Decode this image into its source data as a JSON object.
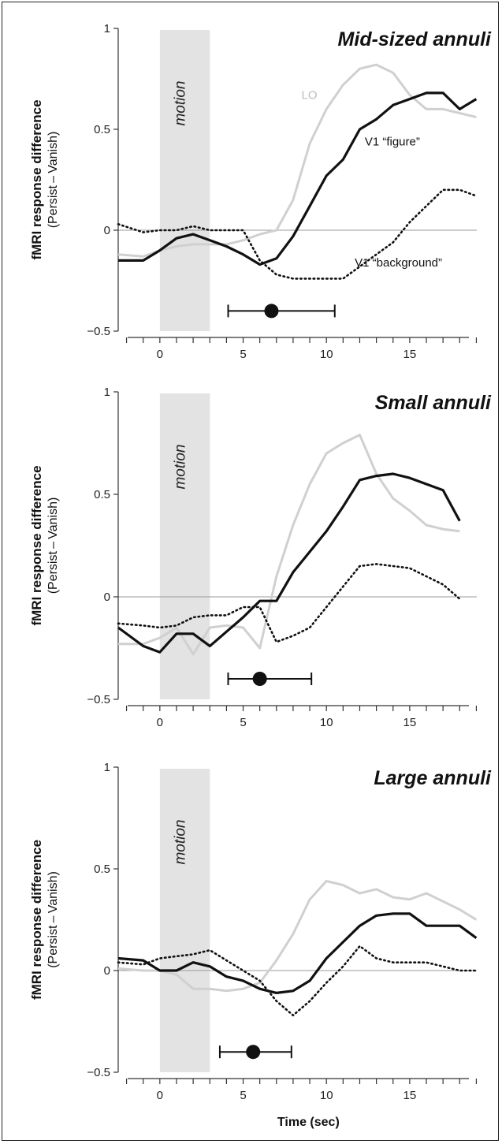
{
  "colors": {
    "lo": "#d0d0d0",
    "figure": "#111111",
    "background": "#111111",
    "motion_band": "#e3e3e3",
    "axis": "#333333",
    "zero_line": "#999999"
  },
  "chart_data": [
    {
      "type": "line",
      "title": "Mid-sized annuli",
      "ylabel": "fMRI response difference",
      "ylabel_sub": "(Persist – Vanish)",
      "xlim": [
        -2.5,
        19.5
      ],
      "ylim": [
        -0.5,
        1
      ],
      "yticks": [
        1,
        0.5,
        0,
        -0.5
      ],
      "ytick_labels": [
        "1",
        "0.5",
        "0",
        "−0.5"
      ],
      "xticks": [
        0,
        5,
        10,
        15
      ],
      "xtick_labels": [
        "0",
        "5",
        "10",
        "15"
      ],
      "shaded_region": {
        "x": [
          0,
          3
        ],
        "label": "motion"
      },
      "series": [
        {
          "name": "LO",
          "style": "gray",
          "x": [
            -2.5,
            -1,
            0,
            1,
            2,
            3,
            4,
            5,
            6,
            7,
            8,
            9,
            10,
            11,
            12,
            13,
            14,
            15,
            16,
            17,
            18,
            19
          ],
          "y": [
            -0.12,
            -0.13,
            -0.1,
            -0.08,
            -0.07,
            -0.07,
            -0.07,
            -0.05,
            -0.02,
            0.0,
            0.15,
            0.43,
            0.6,
            0.72,
            0.8,
            0.82,
            0.78,
            0.67,
            0.6,
            0.6,
            0.58,
            0.56
          ]
        },
        {
          "name": "V1 “figure”",
          "style": "solid",
          "x": [
            -2.5,
            -1,
            0,
            1,
            2,
            3,
            4,
            5,
            6,
            7,
            8,
            9,
            10,
            11,
            12,
            13,
            14,
            15,
            16,
            17,
            18,
            19
          ],
          "y": [
            -0.15,
            -0.15,
            -0.1,
            -0.04,
            -0.02,
            -0.05,
            -0.08,
            -0.12,
            -0.17,
            -0.14,
            -0.03,
            0.12,
            0.27,
            0.35,
            0.5,
            0.55,
            0.62,
            0.65,
            0.68,
            0.68,
            0.6,
            0.65
          ]
        },
        {
          "name": "V1 “background”",
          "style": "dotted",
          "x": [
            -2.5,
            -1,
            0,
            1,
            2,
            3,
            4,
            5,
            6,
            7,
            8,
            9,
            10,
            11,
            12,
            13,
            14,
            15,
            16,
            17,
            18,
            19
          ],
          "y": [
            0.03,
            -0.01,
            0.0,
            0.0,
            0.02,
            0.0,
            0.0,
            0.0,
            -0.15,
            -0.22,
            -0.24,
            -0.24,
            -0.24,
            -0.24,
            -0.18,
            -0.12,
            -0.06,
            0.04,
            0.12,
            0.2,
            0.2,
            0.17
          ]
        }
      ],
      "annotations": [
        {
          "text": "LO",
          "x": 8.5,
          "y": 0.65,
          "gray": true
        },
        {
          "text": "V1 “figure”",
          "x": 12.3,
          "y": 0.42
        },
        {
          "text": "V1 “background”",
          "x": 11.7,
          "y": -0.18
        }
      ],
      "errorbar": {
        "x": 6.7,
        "xmin": 4.1,
        "xmax": 10.5,
        "y": -0.4
      }
    },
    {
      "type": "line",
      "title": "Small annuli",
      "ylabel": "fMRI response difference",
      "ylabel_sub": "(Persist – Vanish)",
      "xlim": [
        -2.5,
        19.5
      ],
      "ylim": [
        -0.5,
        1
      ],
      "yticks": [
        1,
        0.5,
        0,
        -0.5
      ],
      "ytick_labels": [
        "1",
        "0.5",
        "0",
        "−0.5"
      ],
      "xticks": [
        0,
        5,
        10,
        15
      ],
      "xtick_labels": [
        "0",
        "5",
        "10",
        "15"
      ],
      "shaded_region": {
        "x": [
          0,
          3
        ],
        "label": "motion"
      },
      "series": [
        {
          "name": "LO",
          "style": "gray",
          "x": [
            -2.5,
            -1,
            0,
            1,
            2,
            3,
            4,
            5,
            6,
            7,
            8,
            9,
            10,
            11,
            12,
            13,
            14,
            15,
            16,
            17,
            18
          ],
          "y": [
            -0.23,
            -0.23,
            -0.2,
            -0.15,
            -0.28,
            -0.15,
            -0.14,
            -0.15,
            -0.25,
            0.1,
            0.35,
            0.55,
            0.7,
            0.75,
            0.79,
            0.6,
            0.48,
            0.42,
            0.35,
            0.33,
            0.32
          ]
        },
        {
          "name": "V1 “figure”",
          "style": "solid",
          "x": [
            -2.5,
            -1,
            0,
            1,
            2,
            3,
            4,
            5,
            6,
            7,
            8,
            9,
            10,
            11,
            12,
            13,
            14,
            15,
            16,
            17,
            18
          ],
          "y": [
            -0.15,
            -0.24,
            -0.27,
            -0.18,
            -0.18,
            -0.24,
            -0.17,
            -0.1,
            -0.02,
            -0.02,
            0.12,
            0.22,
            0.32,
            0.44,
            0.57,
            0.59,
            0.6,
            0.58,
            0.55,
            0.52,
            0.37
          ]
        },
        {
          "name": "V1 “background”",
          "style": "dotted",
          "x": [
            -2.5,
            -1,
            0,
            1,
            2,
            3,
            4,
            5,
            6,
            7,
            8,
            9,
            10,
            11,
            12,
            13,
            14,
            15,
            16,
            17,
            18
          ],
          "y": [
            -0.13,
            -0.14,
            -0.15,
            -0.14,
            -0.1,
            -0.09,
            -0.09,
            -0.05,
            -0.05,
            -0.22,
            -0.19,
            -0.15,
            -0.05,
            0.05,
            0.15,
            0.16,
            0.15,
            0.14,
            0.1,
            0.06,
            -0.01
          ]
        }
      ],
      "annotations": [],
      "errorbar": {
        "x": 6.0,
        "xmin": 4.1,
        "xmax": 9.1,
        "y": -0.4
      }
    },
    {
      "type": "line",
      "title": "Large annuli",
      "ylabel": "fMRI response difference",
      "ylabel_sub": "(Persist – Vanish)",
      "xlabel": "Time (sec)",
      "xlim": [
        -2.5,
        19.5
      ],
      "ylim": [
        -0.5,
        1
      ],
      "yticks": [
        1,
        0.5,
        0,
        -0.5
      ],
      "ytick_labels": [
        "1",
        "0.5",
        "0",
        "−0.5"
      ],
      "xticks": [
        0,
        5,
        10,
        15
      ],
      "xtick_labels": [
        "0",
        "5",
        "10",
        "15"
      ],
      "shaded_region": {
        "x": [
          0,
          3
        ],
        "label": "motion"
      },
      "series": [
        {
          "name": "LO",
          "style": "gray",
          "x": [
            -2.5,
            -1,
            0,
            1,
            2,
            3,
            4,
            5,
            6,
            7,
            8,
            9,
            10,
            11,
            12,
            13,
            14,
            15,
            16,
            17,
            18,
            19
          ],
          "y": [
            0.01,
            0.0,
            0.0,
            -0.02,
            -0.09,
            -0.09,
            -0.1,
            -0.09,
            -0.06,
            0.05,
            0.18,
            0.35,
            0.44,
            0.42,
            0.38,
            0.4,
            0.36,
            0.35,
            0.38,
            0.34,
            0.3,
            0.25
          ]
        },
        {
          "name": "V1 “figure”",
          "style": "solid",
          "x": [
            -2.5,
            -1,
            0,
            1,
            2,
            3,
            4,
            5,
            6,
            7,
            8,
            9,
            10,
            11,
            12,
            13,
            14,
            15,
            16,
            17,
            18,
            19
          ],
          "y": [
            0.06,
            0.05,
            0.0,
            0.0,
            0.04,
            0.02,
            -0.03,
            -0.05,
            -0.09,
            -0.11,
            -0.1,
            -0.05,
            0.06,
            0.14,
            0.22,
            0.27,
            0.28,
            0.28,
            0.22,
            0.22,
            0.22,
            0.16
          ]
        },
        {
          "name": "V1 “background”",
          "style": "dotted",
          "x": [
            -2.5,
            -1,
            0,
            1,
            2,
            3,
            4,
            5,
            6,
            7,
            8,
            9,
            10,
            11,
            12,
            13,
            14,
            15,
            16,
            17,
            18,
            19
          ],
          "y": [
            0.04,
            0.03,
            0.06,
            0.07,
            0.08,
            0.1,
            0.05,
            0.0,
            -0.05,
            -0.15,
            -0.22,
            -0.15,
            -0.06,
            0.02,
            0.12,
            0.06,
            0.04,
            0.04,
            0.04,
            0.02,
            0.0,
            0.0
          ]
        }
      ],
      "annotations": [],
      "errorbar": {
        "x": 5.6,
        "xmin": 3.6,
        "xmax": 7.9,
        "y": -0.4
      }
    }
  ]
}
